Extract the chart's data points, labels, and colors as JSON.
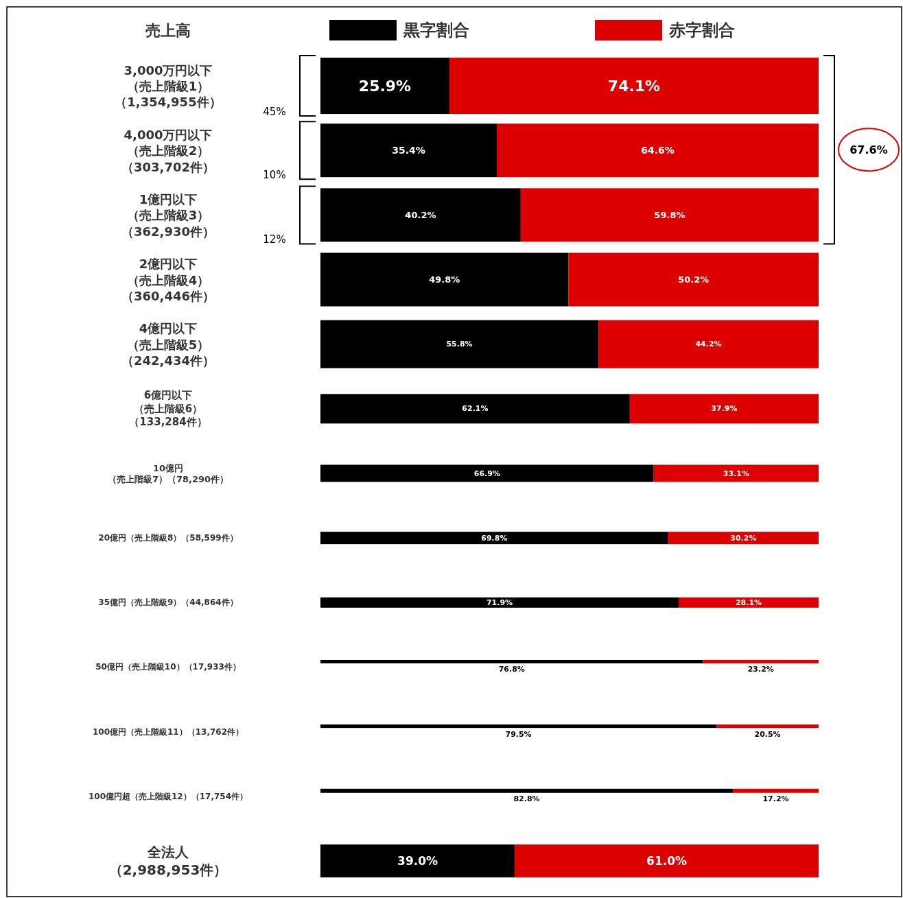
{
  "chart_data": {
    "type": "bar",
    "orientation": "horizontal",
    "stacked": true,
    "legend": "top",
    "categories": [
      "3,000万円以下（売上階級1）（1,354,955件）",
      "4,000万円以下（売上階級2）（303,702件）",
      "1億円以下（売上階級3）（362,930件）",
      "2億円以下（売上階級4）（360,446件）",
      "4億円以下（売上階級5）（242,434件）",
      "6億円以下（売上階級6）（133,284件）",
      "10億円（売上階級7）（78,290件）",
      "20億円（売上階級8）（58,599件）",
      "35億円（売上階級9）（44,864件）",
      "50億円（売上階級10）（17,933件）",
      "100億円（売上階級11）（13,762件）",
      "100億円超（売上階級12）（17,754件）",
      "全法人（2,988,953件）"
    ],
    "series": [
      {
        "name": "黒字割合",
        "color": "#000000",
        "values": [
          25.9,
          35.4,
          40.2,
          49.8,
          55.8,
          62.1,
          66.9,
          69.8,
          71.9,
          76.8,
          79.5,
          82.8,
          39.0
        ],
        "value_labels": [
          "25.9%",
          "35.4%",
          "40.2%",
          "49.8%",
          "55.8%",
          "62.1%",
          "66.9%",
          "69.8%",
          "71.9%",
          "76.8%",
          "79.5%",
          "82.8%",
          "39.0%"
        ]
      },
      {
        "name": "赤字割合",
        "color": "#dd0000",
        "values": [
          74.1,
          64.6,
          59.8,
          50.2,
          44.2,
          37.9,
          33.1,
          30.2,
          28.1,
          23.2,
          20.5,
          17.2,
          61.0
        ],
        "value_labels": [
          "74.1%",
          "64.6%",
          "59.8%",
          "50.2%",
          "44.2%",
          "37.9%",
          "33.1%",
          "30.2%",
          "28.1%",
          "23.2%",
          "20.5%",
          "17.2%",
          "61.0%"
        ]
      }
    ],
    "annotations": [
      "売上高",
      "45%",
      "10%",
      "12%",
      "67.6%"
    ]
  }
}
